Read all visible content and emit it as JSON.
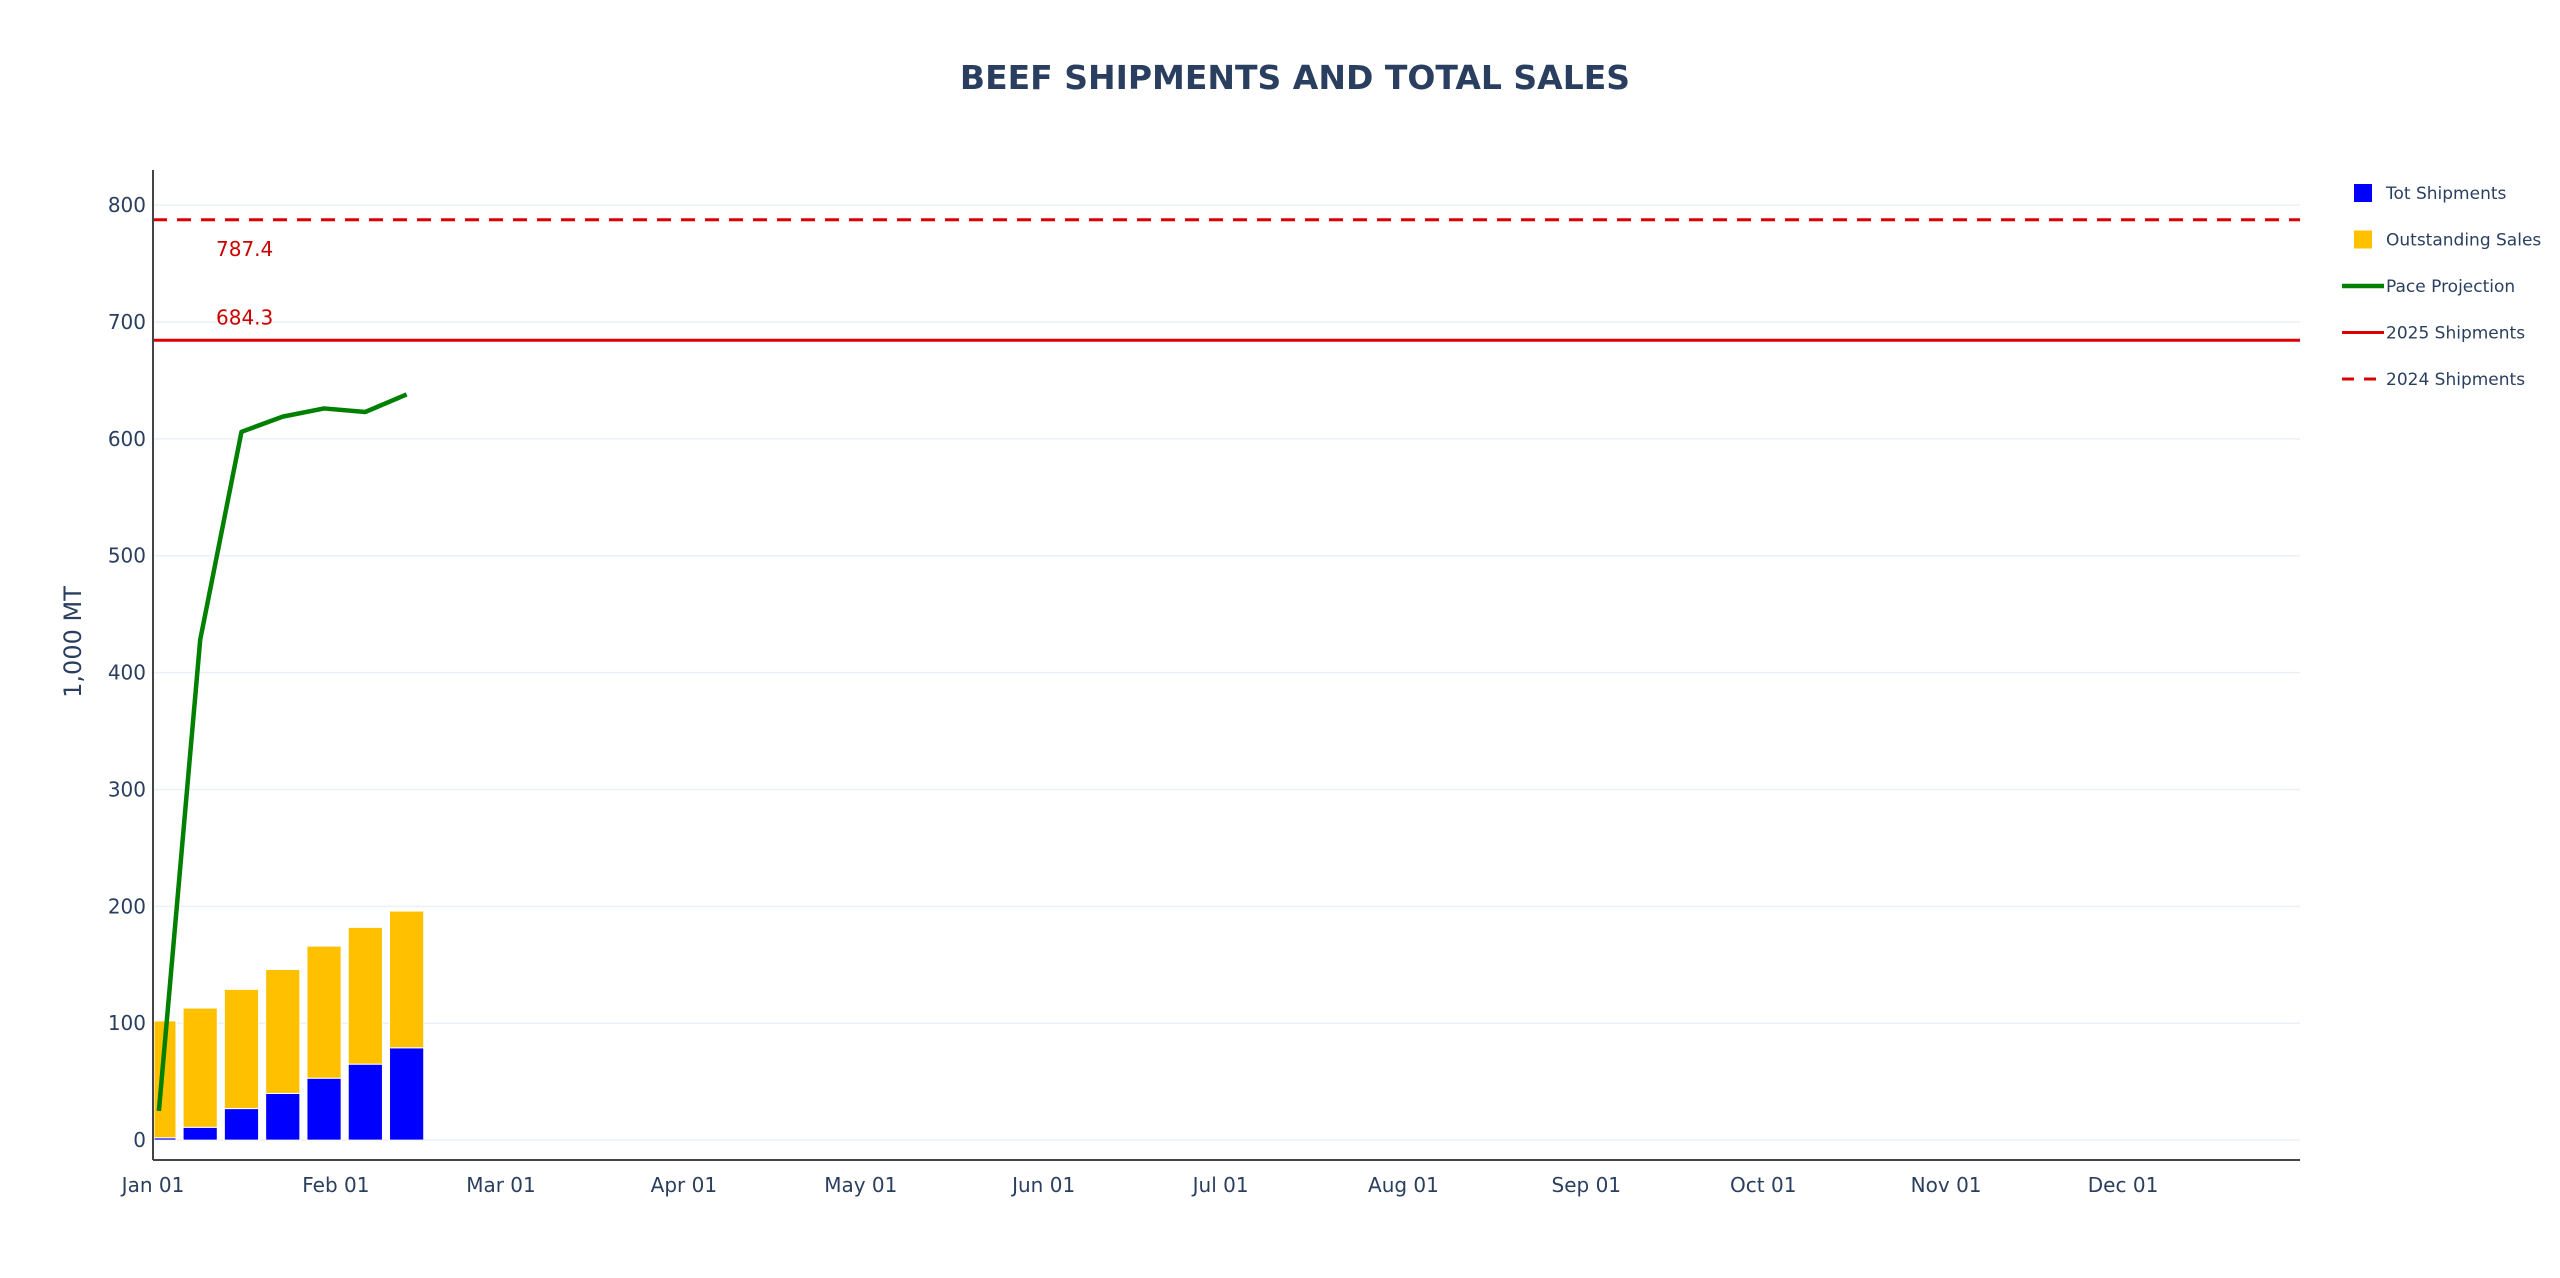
{
  "chart_data": {
    "type": "bar",
    "title": "BEEF SHIPMENTS AND TOTAL SALES",
    "ylabel": "1,000 MT",
    "xlabel": "",
    "ylim": [
      -17,
      830
    ],
    "x_axis": {
      "start": "2025-01-01",
      "end": "2025-12-31",
      "tick_dates": [
        "2025-01-01",
        "2025-02-01",
        "2025-03-01",
        "2025-04-01",
        "2025-05-01",
        "2025-06-01",
        "2025-07-01",
        "2025-08-01",
        "2025-09-01",
        "2025-10-01",
        "2025-11-01",
        "2025-12-01"
      ],
      "tick_labels": [
        "Jan 01",
        "Feb 01",
        "Mar 01",
        "Apr 01",
        "May 01",
        "Jun 01",
        "Jul 01",
        "Aug 01",
        "Sep 01",
        "Oct 01",
        "Nov 01",
        "Dec 01"
      ]
    },
    "y_ticks": [
      0,
      100,
      200,
      300,
      400,
      500,
      600,
      700,
      800
    ],
    "y_tick_labels": [
      "0",
      "100",
      "200",
      "300",
      "400",
      "500",
      "600",
      "700",
      "800"
    ],
    "grid": true,
    "legend_position": "right",
    "stacked": true,
    "dates": [
      "2025-01-02",
      "2025-01-09",
      "2025-01-16",
      "2025-01-23",
      "2025-01-30",
      "2025-02-06",
      "2025-02-13"
    ],
    "series": [
      {
        "name": "Tot Shipments",
        "kind": "bar",
        "color": "#0000ff",
        "values": [
          2,
          11,
          27,
          40,
          53,
          65,
          79
        ]
      },
      {
        "name": "Outstanding Sales",
        "kind": "bar",
        "color": "#ffc000",
        "values": [
          100,
          102,
          102,
          106,
          113,
          117,
          117
        ]
      },
      {
        "name": "Pace Projection",
        "kind": "line",
        "color": "#008000",
        "values": [
          25,
          428,
          606,
          619,
          626,
          623,
          638
        ]
      },
      {
        "name": "2025 Shipments",
        "kind": "hline",
        "color": "#dd0000",
        "dash": "solid",
        "value": 684.3,
        "label": "684.3"
      },
      {
        "name": "2024 Shipments",
        "kind": "hline",
        "color": "#dd0000",
        "dash": "dashed",
        "value": 787.4,
        "label": "787.4"
      }
    ]
  }
}
